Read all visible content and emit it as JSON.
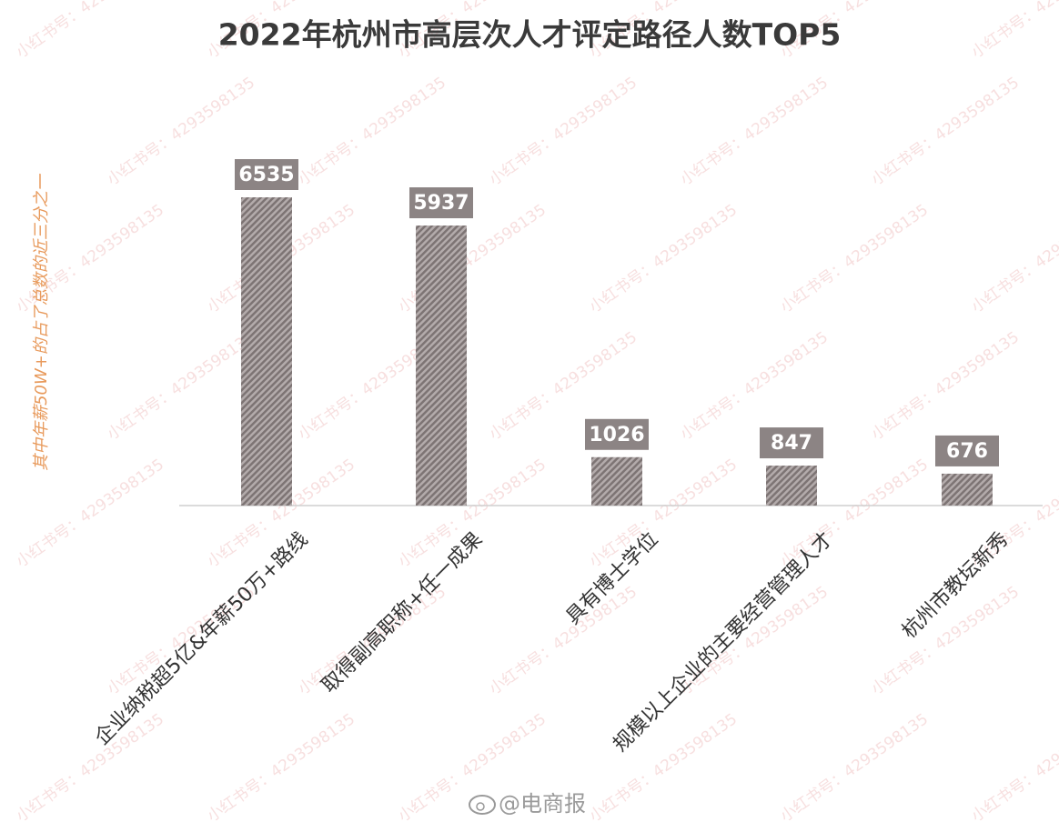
{
  "chart_data": {
    "type": "bar",
    "title": "2022年杭州市高层次人才评定路径人数TOP5",
    "annotation": "其中年薪50W+的占了总数的近三分之一",
    "categories": [
      "企业纳税超5亿&年薪50万+路线",
      "取得副高职称+任一成果",
      "具有博士学位",
      "规模以上企业的主要经营管理人才",
      "杭州市教坛新秀"
    ],
    "values": [
      6535,
      5937,
      1026,
      847,
      676
    ],
    "color": "#8c8484",
    "watermark": "小红书号：4293598135",
    "source": "@电商报"
  }
}
